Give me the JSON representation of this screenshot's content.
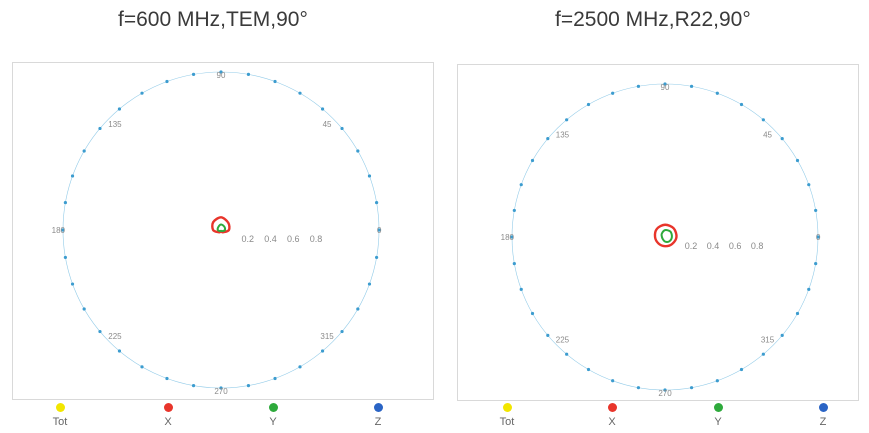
{
  "chart_data": [
    {
      "type": "polar",
      "title": "f=600 MHz,TEM,90°",
      "angle_ticks": [
        "90",
        "45",
        "0",
        "315",
        "270",
        "225",
        "180",
        "135"
      ],
      "radial_ticks": [
        "0.2",
        "0.4",
        "0.6",
        "0.8"
      ],
      "rlim": [
        0,
        1
      ],
      "grid": false,
      "legend_position": "bottom",
      "legend": [
        "Tot",
        "X",
        "Y",
        "Z"
      ],
      "series": [
        {
          "name": "Tot",
          "color": "#f2e600",
          "points": []
        },
        {
          "name": "X",
          "color": "#e8352b",
          "shape": "near-circle",
          "points": [
            {
              "theta": 0,
              "r": 0.05
            },
            {
              "theta": 45,
              "r": 0.065
            },
            {
              "theta": 90,
              "r": 0.08
            },
            {
              "theta": 135,
              "r": 0.07
            },
            {
              "theta": 180,
              "r": 0.05
            },
            {
              "theta": 225,
              "r": 0.02
            },
            {
              "theta": 270,
              "r": 0.01
            },
            {
              "theta": 315,
              "r": 0.02
            }
          ]
        },
        {
          "name": "Y",
          "color": "#2eaa3c",
          "shape": "small-loop",
          "points": [
            {
              "theta": 0,
              "r": 0.025
            },
            {
              "theta": 45,
              "r": 0.03
            },
            {
              "theta": 90,
              "r": 0.035
            },
            {
              "theta": 135,
              "r": 0.025
            },
            {
              "theta": 180,
              "r": 0.02
            },
            {
              "theta": 225,
              "r": 0.01
            },
            {
              "theta": 270,
              "r": 0.005
            },
            {
              "theta": 315,
              "r": 0.01
            }
          ]
        },
        {
          "name": "Z",
          "color": "#2a64c5",
          "points": []
        }
      ]
    },
    {
      "type": "polar",
      "title": "f=2500 MHz,R22,90°",
      "angle_ticks": [
        "90",
        "45",
        "0",
        "315",
        "270",
        "225",
        "180",
        "135"
      ],
      "radial_ticks": [
        "0.2",
        "0.4",
        "0.6",
        "0.8"
      ],
      "rlim": [
        0,
        1
      ],
      "grid": false,
      "legend_position": "bottom",
      "legend": [
        "Tot",
        "X",
        "Y",
        "Z"
      ],
      "series": [
        {
          "name": "Tot",
          "color": "#f2e600",
          "points": []
        },
        {
          "name": "X",
          "color": "#e8352b",
          "shape": "near-circle",
          "points": [
            {
              "theta": 0,
              "r": 0.075
            },
            {
              "theta": 45,
              "r": 0.08
            },
            {
              "theta": 90,
              "r": 0.08
            },
            {
              "theta": 135,
              "r": 0.075
            },
            {
              "theta": 180,
              "r": 0.065
            },
            {
              "theta": 225,
              "r": 0.06
            },
            {
              "theta": 270,
              "r": 0.06
            },
            {
              "theta": 315,
              "r": 0.065
            }
          ]
        },
        {
          "name": "Y",
          "color": "#2eaa3c",
          "shape": "small-loop",
          "points": [
            {
              "theta": 0,
              "r": 0.045
            },
            {
              "theta": 45,
              "r": 0.05
            },
            {
              "theta": 90,
              "r": 0.045
            },
            {
              "theta": 135,
              "r": 0.03
            },
            {
              "theta": 180,
              "r": 0.02
            },
            {
              "theta": 225,
              "r": 0.02
            },
            {
              "theta": 270,
              "r": 0.03
            },
            {
              "theta": 315,
              "r": 0.04
            }
          ]
        },
        {
          "name": "Z",
          "color": "#2a64c5",
          "points": []
        }
      ]
    }
  ],
  "colors": {
    "outer_ring": "#4aa8d8",
    "outer_ring_dots": "#3c9ccf"
  }
}
